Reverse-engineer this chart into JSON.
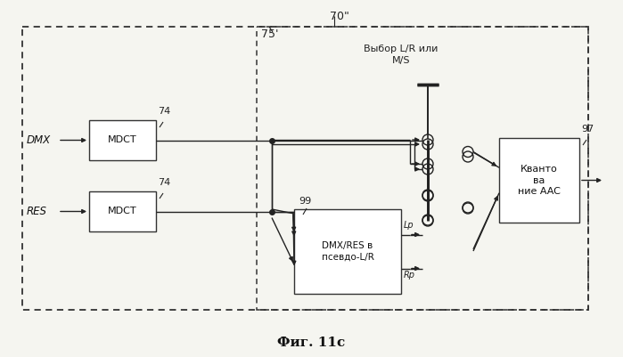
{
  "fig_width": 6.99,
  "fig_height": 4.01,
  "dpi": 100,
  "bg_color": "#f5f5f0",
  "title": "Фиг. 11c",
  "label_70": "70\"",
  "label_75": "75'",
  "label_97": "97",
  "label_99": "99",
  "label_74_top": "74",
  "label_74_bot": "74",
  "selection_label": "Выбор L/R или\nM/S",
  "dmx_label": "DMX",
  "res_label": "RES",
  "mdct_label": "MDCT",
  "aac_label": "Кванто\nва\nние AAC",
  "dmxres_label": "DMX/RES в\nпсевдо-L/R",
  "Lp_label": "Lp",
  "Rp_label": "Rp"
}
